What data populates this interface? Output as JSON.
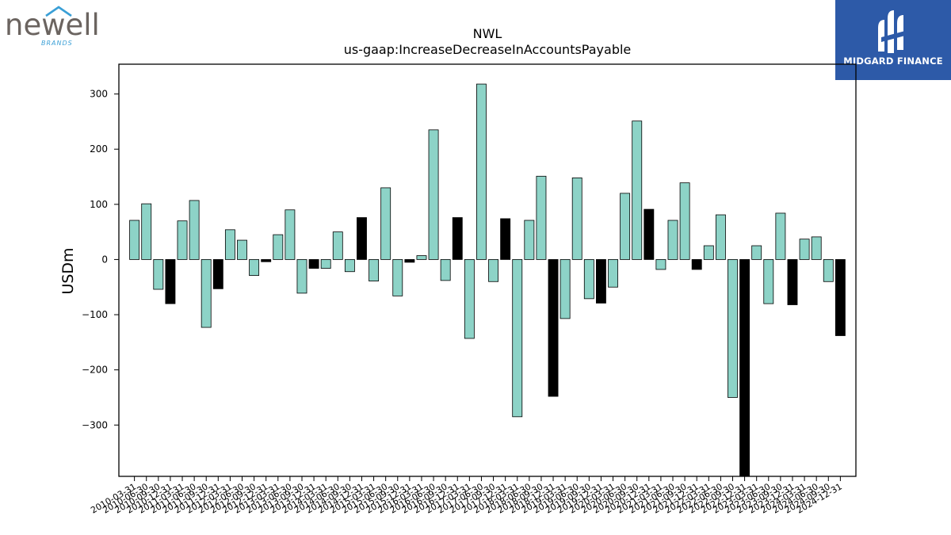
{
  "logos": {
    "left": {
      "word": "newell",
      "sub": "BRANDS"
    },
    "right": {
      "name": "MIDGARD FINANCE"
    }
  },
  "colors": {
    "positive_bar": "#8dd3c7",
    "highlight_bar": "#000000",
    "bar_edge": "#000000",
    "axes": "#000000",
    "brand_box": "#2d5aa8",
    "brand_text": "#ffffff",
    "newell_word": "#6b6460",
    "newell_accent": "#3a9fd6"
  },
  "chart_data": {
    "type": "bar",
    "title": "NWL",
    "subtitle": "us-gaap:IncreaseDecreaseInAccountsPayable",
    "xlabel": "",
    "ylabel": "USDm",
    "ylim": [
      -393,
      354
    ],
    "yticks": [
      -300,
      -200,
      -100,
      0,
      100,
      200,
      300
    ],
    "ytick_labels": [
      "−300",
      "−200",
      "−100",
      "0",
      "100",
      "200",
      "300"
    ],
    "grid": false,
    "categories": [
      "2010-03-31",
      "2010-06-30",
      "2010-09-30",
      "2010-12-31",
      "2011-03-31",
      "2011-06-30",
      "2011-09-30",
      "2011-12-31",
      "2012-03-31",
      "2012-06-30",
      "2012-09-30",
      "2012-12-31",
      "2013-03-31",
      "2013-06-30",
      "2013-09-30",
      "2013-12-31",
      "2014-03-31",
      "2014-06-30",
      "2014-09-30",
      "2014-12-31",
      "2015-03-31",
      "2015-06-30",
      "2015-09-30",
      "2015-12-31",
      "2016-03-31",
      "2016-06-30",
      "2016-09-30",
      "2016-12-31",
      "2017-03-31",
      "2017-06-30",
      "2017-09-30",
      "2017-12-31",
      "2018-03-31",
      "2018-06-30",
      "2018-09-30",
      "2018-12-31",
      "2019-03-31",
      "2019-06-30",
      "2019-09-30",
      "2019-12-31",
      "2020-03-31",
      "2020-06-30",
      "2020-09-30",
      "2020-12-31",
      "2021-03-31",
      "2021-06-30",
      "2021-09-30",
      "2021-12-31",
      "2022-03-31",
      "2022-06-30",
      "2022-09-30",
      "2022-12-31",
      "2023-03-31",
      "2023-06-30",
      "2023-09-30",
      "2023-12-31",
      "2024-03-31",
      "2024-06-30",
      "2024-09-30",
      "2024-12-31"
    ],
    "values": [
      71,
      101,
      -54,
      -80,
      70,
      107,
      -123,
      -53,
      54,
      35,
      -29,
      -4,
      45,
      90,
      -61,
      -16,
      -16,
      50,
      -22,
      76,
      -39,
      130,
      -66,
      -5,
      7,
      235,
      -38,
      76,
      -143,
      318,
      -40,
      74,
      -285,
      71,
      151,
      -248,
      -107,
      148,
      -71,
      -79,
      -50,
      120,
      251,
      91,
      -18,
      71,
      139,
      -18,
      25,
      81,
      -250,
      -393,
      25,
      -80,
      84,
      -82,
      37,
      41,
      -40,
      -138
    ],
    "highlight": [
      false,
      false,
      false,
      true,
      false,
      false,
      false,
      true,
      false,
      false,
      false,
      true,
      false,
      false,
      false,
      true,
      false,
      false,
      false,
      true,
      false,
      false,
      false,
      true,
      false,
      false,
      false,
      true,
      false,
      false,
      false,
      true,
      false,
      false,
      false,
      true,
      false,
      false,
      false,
      true,
      false,
      false,
      false,
      true,
      false,
      false,
      false,
      true,
      false,
      false,
      false,
      true,
      false,
      false,
      false,
      true,
      false,
      false,
      false,
      true
    ]
  }
}
